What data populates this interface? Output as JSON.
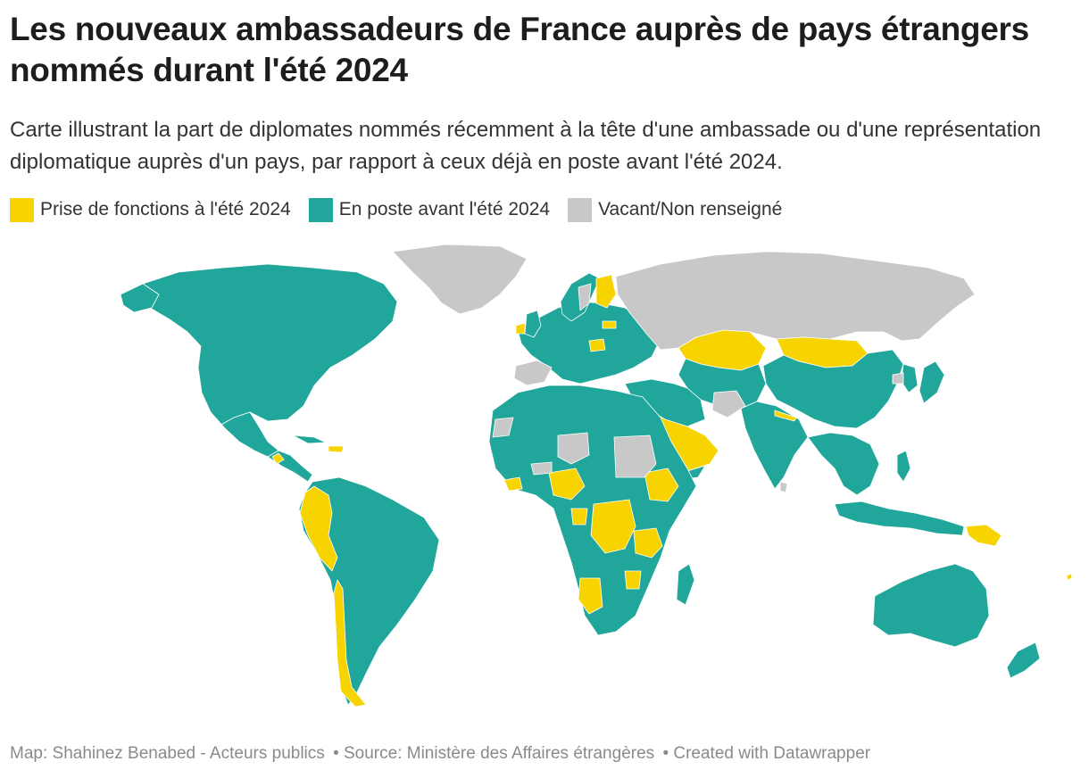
{
  "header": {
    "title": "Les nouveaux ambassadeurs de France auprès de pays étrangers nommés durant l'été 2024",
    "subtitle": "Carte illustrant la part de diplomates nommés récemment à la tête d'une ambassade ou d'une représentation diplomatique auprès d'un pays, par rapport à ceux déjà en poste avant l'été 2024."
  },
  "legend": [
    {
      "label": "Prise de fonctions à l'été 2024",
      "color": "#f7d300"
    },
    {
      "label": "En poste avant l'été 2024",
      "color": "#20a69a"
    },
    {
      "label": "Vacant/Non renseigné",
      "color": "#c8c8c8"
    }
  ],
  "colors": {
    "new": "#f7d300",
    "existing": "#20a69a",
    "vacant": "#c8c8c8",
    "border": "#ffffff"
  },
  "footer": {
    "map_credit": "Map: Shahinez Benabed - Acteurs publics",
    "source": "• Source: Ministère des Affaires étrangères",
    "created": "• Created with Datawrapper"
  }
}
